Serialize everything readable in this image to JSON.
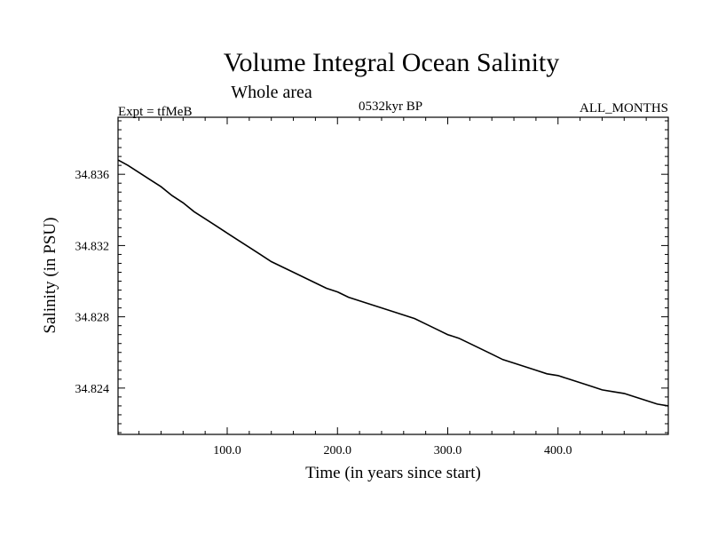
{
  "chart_data": {
    "type": "line",
    "title": "Volume Integral Ocean Salinity",
    "subtitle": "Whole area",
    "left_label": "Expt = tfMeB",
    "center_label": "0532kyr BP",
    "right_label": "ALL_MONTHS",
    "xlabel": "Time (in years since start)",
    "ylabel": "Salinity (in PSU)",
    "xlim": [
      1,
      500
    ],
    "ylim": [
      34.8214,
      34.8392
    ],
    "x_ticks": [
      100,
      200,
      300,
      400
    ],
    "x_tick_labels": [
      "100.0",
      "200.0",
      "300.0",
      "400.0"
    ],
    "y_ticks": [
      34.824,
      34.828,
      34.832,
      34.836
    ],
    "y_tick_labels": [
      "34.824",
      "34.828",
      "34.832",
      "34.836"
    ],
    "grid": false,
    "legend": "none",
    "series": [
      {
        "x": [
          1,
          10,
          20,
          30,
          40,
          50,
          60,
          70,
          80,
          90,
          100,
          110,
          120,
          130,
          140,
          150,
          160,
          170,
          180,
          190,
          200,
          210,
          220,
          230,
          240,
          250,
          260,
          270,
          280,
          290,
          300,
          310,
          320,
          330,
          340,
          350,
          360,
          370,
          380,
          390,
          400,
          410,
          420,
          430,
          440,
          450,
          460,
          470,
          480,
          490,
          500
        ],
        "y": [
          34.8368,
          34.8365,
          34.8361,
          34.8357,
          34.8353,
          34.8348,
          34.8344,
          34.8339,
          34.8335,
          34.8331,
          34.8327,
          34.8323,
          34.8319,
          34.8315,
          34.8311,
          34.8308,
          34.8305,
          34.8302,
          34.8299,
          34.8296,
          34.8294,
          34.8291,
          34.8289,
          34.8287,
          34.8285,
          34.8283,
          34.8281,
          34.8279,
          34.8276,
          34.8273,
          34.827,
          34.8268,
          34.8265,
          34.8262,
          34.8259,
          34.8256,
          34.8254,
          34.8252,
          34.825,
          34.8248,
          34.8247,
          34.8245,
          34.8243,
          34.8241,
          34.8239,
          34.8238,
          34.8237,
          34.8235,
          34.8233,
          34.8231,
          34.823
        ]
      }
    ]
  }
}
